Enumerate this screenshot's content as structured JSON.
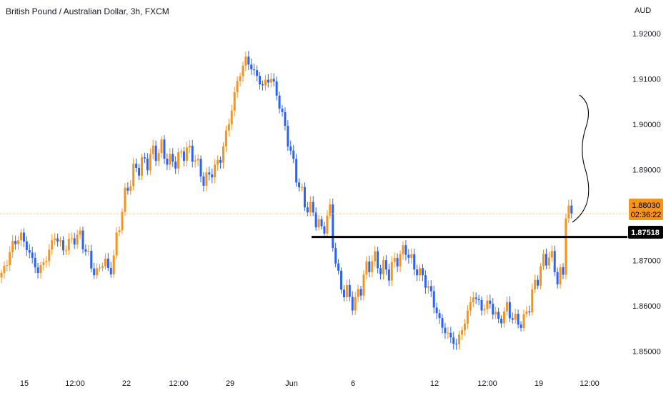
{
  "title": "British Pound / Australian Dollar, 3h, FXCM",
  "currency": "AUD",
  "chart_data": {
    "type": "candlestick",
    "title": "British Pound / Australian Dollar, 3h, FXCM",
    "ylabel": "AUD",
    "ylim": [
      1.8455,
      1.9235
    ],
    "y_ticks": [
      1.92,
      1.91,
      1.9,
      1.89,
      1.88,
      1.87,
      1.86,
      1.85
    ],
    "y_tick_labels": [
      "1.92000",
      "1.91000",
      "1.90000",
      "1.89000",
      "1.88000",
      "1.87000",
      "1.86000",
      "1.85000"
    ],
    "x_tick_labels": [
      "15",
      "12:00",
      "22",
      "12:00",
      "29",
      "Jun",
      "6",
      "12",
      "12:00",
      "19",
      "12:00"
    ],
    "current_price": 1.8803,
    "current_price_label": "1.88030",
    "countdown": "02:36:22",
    "support_level": 1.87518,
    "support_label": "1.87518",
    "bull_color": "#f7931a",
    "bear_color": "#2962ff",
    "close_path": [
      [
        0,
        1.8665
      ],
      [
        4,
        1.8735
      ],
      [
        7,
        1.8755
      ],
      [
        10,
        1.8715
      ],
      [
        13,
        1.8675
      ],
      [
        16,
        1.8705
      ],
      [
        19,
        1.8755
      ],
      [
        22,
        1.8725
      ],
      [
        25,
        1.8745
      ],
      [
        28,
        1.8755
      ],
      [
        31,
        1.8705
      ],
      [
        34,
        1.8665
      ],
      [
        36,
        1.8705
      ],
      [
        38,
        1.8675
      ],
      [
        40,
        1.8705
      ],
      [
        42,
        1.8785
      ],
      [
        45,
        1.8865
      ],
      [
        48,
        1.8905
      ],
      [
        51,
        1.8915
      ],
      [
        54,
        1.8935
      ],
      [
        57,
        1.8945
      ],
      [
        60,
        1.8915
      ],
      [
        63,
        1.8925
      ],
      [
        66,
        1.8945
      ],
      [
        69,
        1.8925
      ],
      [
        72,
        1.8875
      ],
      [
        75,
        1.8895
      ],
      [
        78,
        1.8925
      ],
      [
        81,
        1.9005
      ],
      [
        84,
        1.9095
      ],
      [
        87,
        1.9145
      ],
      [
        90,
        1.9115
      ],
      [
        93,
        1.9085
      ],
      [
        96,
        1.9105
      ],
      [
        99,
        1.9045
      ],
      [
        102,
        1.8965
      ],
      [
        105,
        1.8885
      ],
      [
        108,
        1.8825
      ],
      [
        111,
        1.8805
      ],
      [
        114,
        1.8765
      ],
      [
        116,
        1.8795
      ],
      [
        117,
        1.8805
      ],
      [
        118,
        1.8745
      ],
      [
        120,
        1.8655
      ],
      [
        123,
        1.8625
      ],
      [
        126,
        1.8605
      ],
      [
        129,
        1.8665
      ],
      [
        132,
        1.8705
      ],
      [
        135,
        1.8685
      ],
      [
        138,
        1.8675
      ],
      [
        141,
        1.8705
      ],
      [
        144,
        1.8725
      ],
      [
        147,
        1.8685
      ],
      [
        150,
        1.8665
      ],
      [
        153,
        1.8625
      ],
      [
        156,
        1.8565
      ],
      [
        159,
        1.8535
      ],
      [
        162,
        1.8515
      ],
      [
        165,
        1.8565
      ],
      [
        168,
        1.8625
      ],
      [
        171,
        1.8595
      ],
      [
        174,
        1.8605
      ],
      [
        177,
        1.8565
      ],
      [
        180,
        1.8595
      ],
      [
        183,
        1.8565
      ],
      [
        186,
        1.8565
      ],
      [
        189,
        1.8625
      ],
      [
        192,
        1.8685
      ],
      [
        195,
        1.8715
      ],
      [
        198,
        1.8665
      ],
      [
        200,
        1.8665
      ],
      [
        201,
        1.8815
      ],
      [
        203,
        1.8803
      ]
    ]
  }
}
